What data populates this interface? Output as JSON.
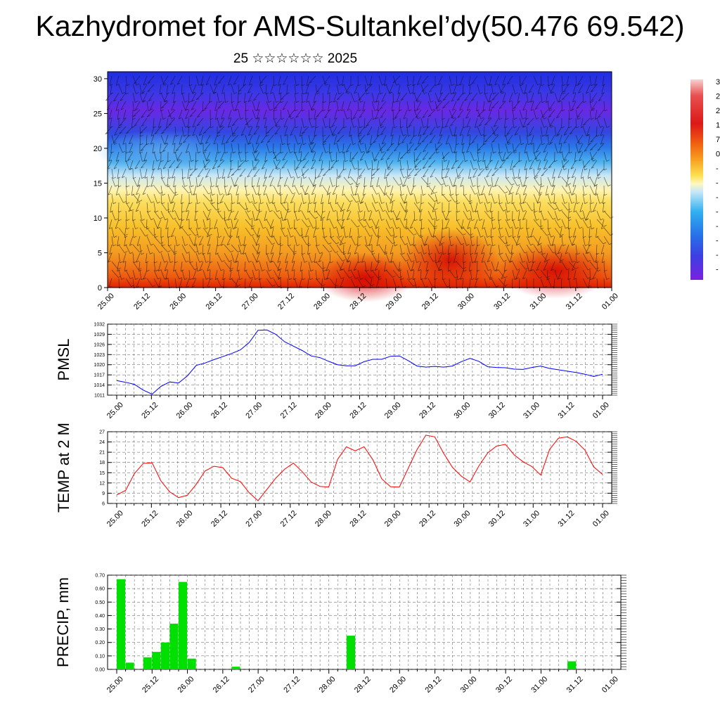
{
  "title": "Kazhydromet for AMS-Sultankel’dy(50.476 69.542)",
  "subtitle": "25 ☆☆☆☆☆☆ 2025",
  "x_ticks": [
    "25.00",
    "25.12",
    "26.00",
    "26.12",
    "27.00",
    "27.12",
    "28.00",
    "28.12",
    "29.00",
    "29.12",
    "30.00",
    "30.12",
    "31.00",
    "31.12",
    "01.00"
  ],
  "colorbar": {
    "labels": [
      "3",
      "2",
      "2",
      "1",
      "7",
      "0",
      "-",
      "-",
      "-",
      "-",
      "-",
      "-",
      "-",
      "-"
    ],
    "colors": [
      "#f5c6c6",
      "#ee8888",
      "#dd2020",
      "#e83010",
      "#f06010",
      "#f8a020",
      "#fbd040",
      "#fff0a0",
      "#c8e8f8",
      "#40b0f0",
      "#2080e8",
      "#3050e0",
      "#5030e8",
      "#7020e0"
    ]
  },
  "chart_data": [
    {
      "type": "heatmap",
      "title": "",
      "ylabel": "",
      "ylim": [
        0,
        31
      ],
      "yticks": [
        0,
        5,
        10,
        15,
        20,
        25,
        30
      ],
      "xticks": [
        "25.00",
        "25.12",
        "26.00",
        "26.12",
        "27.00",
        "27.12",
        "28.00",
        "28.12",
        "29.00",
        "29.12",
        "30.00",
        "30.12",
        "31.00",
        "31.12",
        "01.00"
      ]
    },
    {
      "type": "line",
      "ylabel": "PMSL",
      "ylim": [
        1011,
        1032
      ],
      "yticks": [
        1011,
        1014,
        1017,
        1020,
        1023,
        1026,
        1029,
        1032
      ],
      "color": "#0000ff",
      "values": [
        1015.3,
        1014.8,
        1014.2,
        1012.5,
        1011.3,
        1013.6,
        1014.9,
        1014.6,
        1016.7,
        1019.8,
        1020.5,
        1021.5,
        1022.4,
        1023.3,
        1024.4,
        1026.6,
        1030.2,
        1030.3,
        1029.0,
        1026.8,
        1025.5,
        1024.2,
        1022.6,
        1022.1,
        1021.0,
        1020.0,
        1019.7,
        1019.7,
        1020.9,
        1021.6,
        1021.6,
        1022.5,
        1022.6,
        1021.2,
        1019.6,
        1019.3,
        1019.5,
        1019.3,
        1019.6,
        1020.9,
        1021.9,
        1021.0,
        1019.4,
        1019.2,
        1019.1,
        1018.7,
        1018.6,
        1019.2,
        1019.6,
        1018.9,
        1018.5,
        1018.1,
        1017.7,
        1017.2,
        1016.5,
        1017.2
      ]
    },
    {
      "type": "line",
      "ylabel": "TEMP at 2 M",
      "ylim": [
        6,
        27
      ],
      "yticks": [
        6,
        9,
        12,
        15,
        18,
        21,
        24,
        27
      ],
      "color": "#ff0000",
      "values": [
        8.5,
        9.8,
        14.7,
        17.7,
        17.9,
        12.6,
        9.4,
        7.7,
        8.4,
        11.6,
        15.5,
        16.9,
        16.5,
        13.4,
        12.4,
        9.1,
        6.8,
        10.1,
        13.4,
        16.0,
        17.8,
        15.3,
        12.3,
        11.0,
        10.8,
        18.9,
        22.6,
        21.4,
        22.6,
        18.8,
        13.2,
        10.9,
        10.8,
        16.3,
        21.8,
        26.0,
        25.5,
        20.7,
        16.6,
        14.0,
        12.3,
        17.0,
        20.8,
        22.8,
        23.3,
        20.2,
        18.2,
        16.8,
        14.3,
        21.8,
        25.1,
        25.5,
        24.2,
        21.6,
        16.7,
        14.5
      ]
    },
    {
      "type": "bar",
      "ylabel": "PRECIP, mm",
      "ylim": [
        0,
        0.7
      ],
      "yticks": [
        "0.00",
        "0.10",
        "0.20",
        "0.30",
        "0.40",
        "0.50",
        "0.60",
        "0.70"
      ],
      "color": "#00e000",
      "values": [
        0.67,
        0.05,
        0,
        0.09,
        0.13,
        0.2,
        0.34,
        0.65,
        0.08,
        0,
        0,
        0,
        0,
        0.02,
        0,
        0,
        0,
        0,
        0,
        0,
        0,
        0,
        0,
        0,
        0,
        0,
        0.25,
        0,
        0,
        0,
        0,
        0,
        0,
        0,
        0,
        0,
        0,
        0,
        0,
        0,
        0,
        0,
        0,
        0,
        0,
        0,
        0,
        0,
        0,
        0,
        0,
        0.06,
        0,
        0,
        0,
        0
      ]
    }
  ]
}
